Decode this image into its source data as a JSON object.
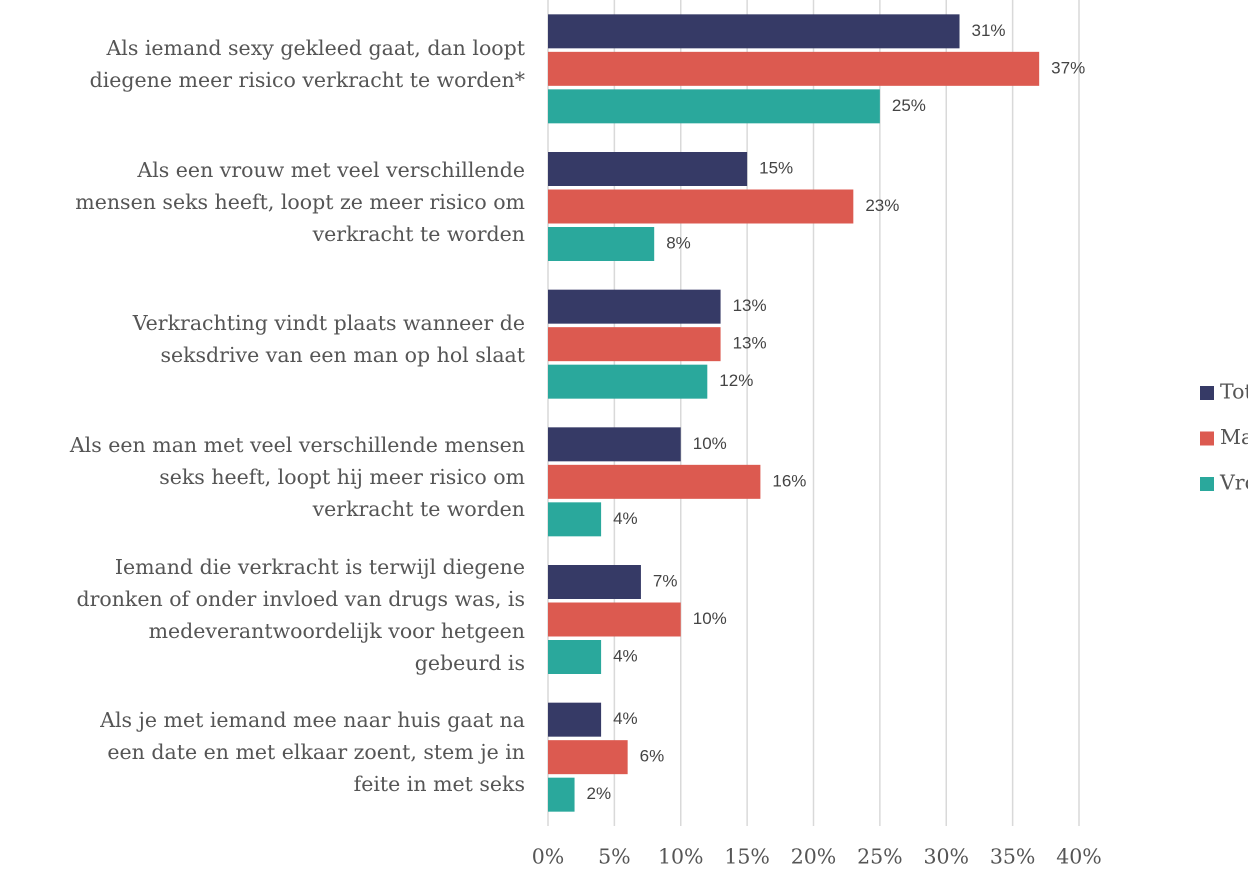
{
  "chart_data": {
    "type": "hbar",
    "categories": [
      "Als iemand sexy gekleed gaat, dan loopt\ndiegene meer risico verkracht te worden*",
      "Als een vrouw met veel verschillende\nmensen seks heeft, loopt ze meer risico om\nverkracht te worden",
      "Verkrachting vindt plaats wanneer de\nseksdrive van een man op hol slaat",
      "Als een man met veel verschillende mensen\nseks heeft, loopt hij meer risico om\nverkracht te worden",
      "Iemand die verkracht is terwijl diegene\ndronken of onder invloed van drugs was, is\nmedeverantwoordelijk voor hetgeen\ngebeurd is",
      "Als je met iemand mee naar huis gaat na\neen date en met elkaar zoent, stem je in\nfeite in met seks"
    ],
    "series": [
      {
        "name": "Totaal",
        "color": "#363a66",
        "values": [
          31,
          15,
          13,
          10,
          7,
          4
        ],
        "value_labels": [
          "31%",
          "15%",
          "13%",
          "10%",
          "7%",
          "4%"
        ]
      },
      {
        "name": "Man",
        "color": "#dc5a50",
        "values": [
          37,
          23,
          13,
          16,
          10,
          6
        ],
        "value_labels": [
          "37%",
          "23%",
          "13%",
          "16%",
          "10%",
          "6%"
        ]
      },
      {
        "name": "Vrouw",
        "color": "#2aa89c",
        "values": [
          25,
          8,
          12,
          4,
          4,
          2
        ],
        "value_labels": [
          "25%",
          "8%",
          "12%",
          "4%",
          "4%",
          "2%"
        ]
      }
    ],
    "xlim": [
      0,
      40
    ],
    "xticks": [
      {
        "value": 0,
        "label": "0%"
      },
      {
        "value": 5,
        "label": "5%"
      },
      {
        "value": 10,
        "label": "10%"
      },
      {
        "value": 15,
        "label": "15%"
      },
      {
        "value": 20,
        "label": "20%"
      },
      {
        "value": 25,
        "label": "25%"
      },
      {
        "value": 30,
        "label": "30%"
      },
      {
        "value": 35,
        "label": "35%"
      },
      {
        "value": 40,
        "label": "40%"
      }
    ],
    "grid": true,
    "legend": "right"
  }
}
